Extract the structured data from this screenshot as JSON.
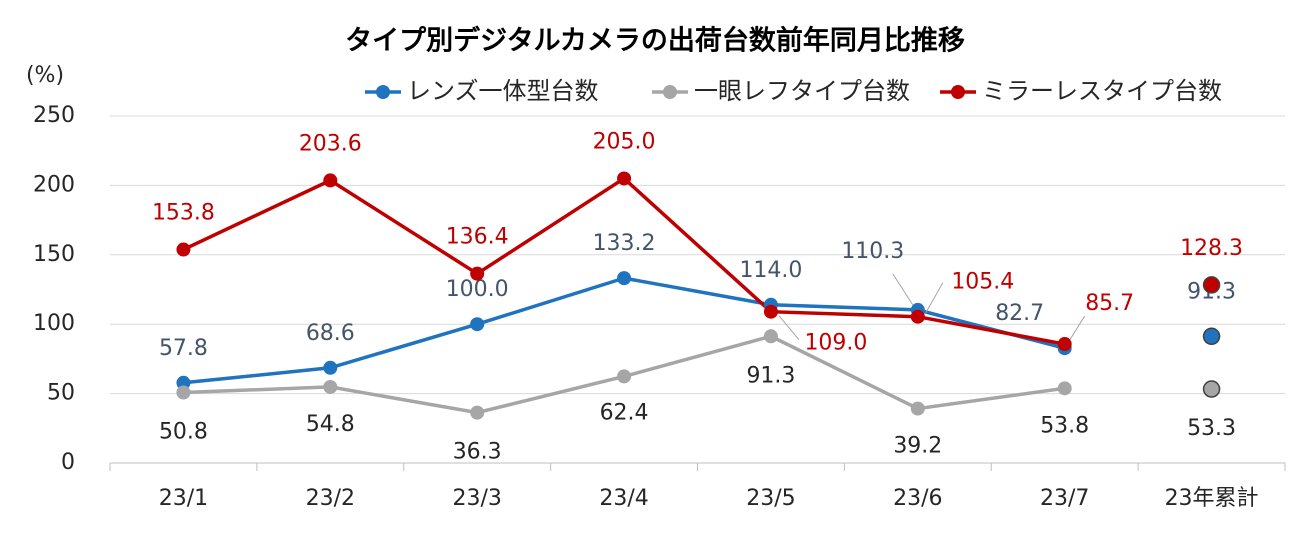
{
  "chart_data": {
    "type": "line",
    "title": "タイプ別デジタルカメラの出荷台数前年同月比推移",
    "y_unit": "(%)",
    "categories": [
      "23/1",
      "23/2",
      "23/3",
      "23/4",
      "23/5",
      "23/6",
      "23/7"
    ],
    "total_label": "23年累計",
    "series": [
      {
        "name": "レンズ一体型台数",
        "color": "#1f73bf",
        "label_color": "#44546a",
        "values": [
          57.8,
          68.6,
          100.0,
          133.2,
          114.0,
          110.3,
          82.7
        ],
        "value_labels": [
          "57.8",
          "68.6",
          "100.0",
          "133.2",
          "114.0",
          "110.3",
          "82.7"
        ],
        "total": 91.3
      },
      {
        "name": "一眼レフタイプ台数",
        "color": "#a6a6a6",
        "label_color": "#262626",
        "values": [
          50.8,
          54.8,
          36.3,
          62.4,
          91.3,
          39.2,
          53.8
        ],
        "total": 53.3
      },
      {
        "name": "ミラーレスタイプ台数",
        "color": "#c00000",
        "label_color": "#c00000",
        "values": [
          153.8,
          203.6,
          136.4,
          205.0,
          109.0,
          105.4,
          85.7
        ],
        "value_labels": [
          "153.8",
          "203.6",
          "136.4",
          "205.0",
          "109.0",
          "105.4",
          "85.7"
        ],
        "total": 128.3
      }
    ],
    "ylim": [
      0,
      250
    ],
    "yticks": [
      0,
      50,
      100,
      150,
      200,
      250
    ],
    "grid": true,
    "legend": "top"
  }
}
